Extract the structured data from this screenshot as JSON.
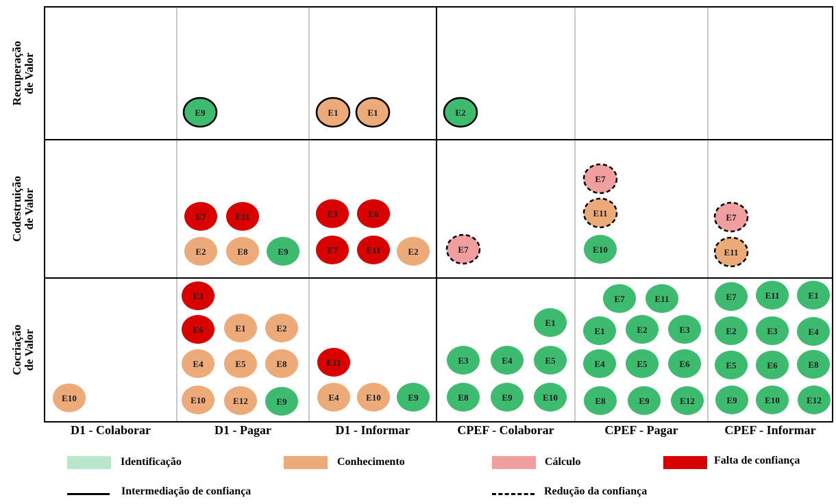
{
  "rows": [
    {
      "id": "recuperacao",
      "line1": "Recuperação",
      "line2": "de Valor"
    },
    {
      "id": "codestruicao",
      "line1": "Codestruição",
      "line2": "de Valor"
    },
    {
      "id": "cocriacao",
      "line1": "Cocriação",
      "line2": "de Valor"
    }
  ],
  "columns": [
    "D1 - Colaborar",
    "D1 - Pagar",
    "D1 - Informar",
    "CPEF - Colaborar",
    "CPEF - Pagar",
    "CPEF - Informar"
  ],
  "colors": {
    "identificacao": "#3dbb6f",
    "conhecimento": "#eeab7a",
    "calculo": "#f19e9e",
    "falta": "#d90000",
    "swatch_identificacao": "#b8e7cb"
  },
  "legend": {
    "identificacao": "Identificação",
    "conhecimento": "Conhecimento",
    "calculo": "Cálculo",
    "falta": "Falta de confiança",
    "intermediacao": "Intermediação de confiança",
    "reducao": "Redução da confiança"
  },
  "nodes": [
    {
      "row": 0,
      "col": 1,
      "label": "E9",
      "cat": "identificacao",
      "border": "solid"
    },
    {
      "row": 0,
      "col": 2,
      "label": "E1",
      "cat": "conhecimento",
      "border": "solid"
    },
    {
      "row": 0,
      "col": 2,
      "label": "E1",
      "cat": "conhecimento",
      "border": "solid"
    },
    {
      "row": 0,
      "col": 3,
      "label": "E2",
      "cat": "identificacao",
      "border": "solid"
    },
    {
      "row": 1,
      "col": 1,
      "label": "E7",
      "cat": "falta",
      "border": "none"
    },
    {
      "row": 1,
      "col": 1,
      "label": "E11",
      "cat": "falta",
      "border": "none"
    },
    {
      "row": 1,
      "col": 1,
      "label": "E2",
      "cat": "conhecimento",
      "border": "none"
    },
    {
      "row": 1,
      "col": 1,
      "label": "E8",
      "cat": "conhecimento",
      "border": "none"
    },
    {
      "row": 1,
      "col": 1,
      "label": "E9",
      "cat": "identificacao",
      "border": "none"
    },
    {
      "row": 1,
      "col": 2,
      "label": "E3",
      "cat": "falta",
      "border": "none"
    },
    {
      "row": 1,
      "col": 2,
      "label": "E6",
      "cat": "falta",
      "border": "none"
    },
    {
      "row": 1,
      "col": 2,
      "label": "E7",
      "cat": "falta",
      "border": "none"
    },
    {
      "row": 1,
      "col": 2,
      "label": "E11",
      "cat": "falta",
      "border": "none"
    },
    {
      "row": 1,
      "col": 2,
      "label": "E2",
      "cat": "conhecimento",
      "border": "none"
    },
    {
      "row": 1,
      "col": 3,
      "label": "E7",
      "cat": "calculo",
      "border": "dashed"
    },
    {
      "row": 1,
      "col": 4,
      "label": "E7",
      "cat": "calculo",
      "border": "dashed"
    },
    {
      "row": 1,
      "col": 4,
      "label": "E11",
      "cat": "conhecimento",
      "border": "dashed"
    },
    {
      "row": 1,
      "col": 4,
      "label": "E10",
      "cat": "identificacao",
      "border": "none"
    },
    {
      "row": 1,
      "col": 5,
      "label": "E7",
      "cat": "calculo",
      "border": "dashed"
    },
    {
      "row": 1,
      "col": 5,
      "label": "E11",
      "cat": "conhecimento",
      "border": "dashed"
    },
    {
      "row": 2,
      "col": 0,
      "label": "E10",
      "cat": "conhecimento",
      "border": "none"
    },
    {
      "row": 2,
      "col": 1,
      "label": "E3",
      "cat": "falta",
      "border": "none"
    },
    {
      "row": 2,
      "col": 1,
      "label": "E6",
      "cat": "falta",
      "border": "none"
    },
    {
      "row": 2,
      "col": 1,
      "label": "E1",
      "cat": "conhecimento",
      "border": "none"
    },
    {
      "row": 2,
      "col": 1,
      "label": "E2",
      "cat": "conhecimento",
      "border": "none"
    },
    {
      "row": 2,
      "col": 1,
      "label": "E4",
      "cat": "conhecimento",
      "border": "none"
    },
    {
      "row": 2,
      "col": 1,
      "label": "E5",
      "cat": "conhecimento",
      "border": "none"
    },
    {
      "row": 2,
      "col": 1,
      "label": "E8",
      "cat": "conhecimento",
      "border": "none"
    },
    {
      "row": 2,
      "col": 1,
      "label": "E10",
      "cat": "conhecimento",
      "border": "none"
    },
    {
      "row": 2,
      "col": 1,
      "label": "E12",
      "cat": "conhecimento",
      "border": "none"
    },
    {
      "row": 2,
      "col": 1,
      "label": "E9",
      "cat": "identificacao",
      "border": "none"
    },
    {
      "row": 2,
      "col": 2,
      "label": "E11",
      "cat": "falta",
      "border": "none"
    },
    {
      "row": 2,
      "col": 2,
      "label": "E4",
      "cat": "conhecimento",
      "border": "none"
    },
    {
      "row": 2,
      "col": 2,
      "label": "E10",
      "cat": "conhecimento",
      "border": "none"
    },
    {
      "row": 2,
      "col": 2,
      "label": "E9",
      "cat": "identificacao",
      "border": "none"
    },
    {
      "row": 2,
      "col": 3,
      "label": "E1",
      "cat": "identificacao",
      "border": "none"
    },
    {
      "row": 2,
      "col": 3,
      "label": "E3",
      "cat": "identificacao",
      "border": "none"
    },
    {
      "row": 2,
      "col": 3,
      "label": "E4",
      "cat": "identificacao",
      "border": "none"
    },
    {
      "row": 2,
      "col": 3,
      "label": "E5",
      "cat": "identificacao",
      "border": "none"
    },
    {
      "row": 2,
      "col": 3,
      "label": "E8",
      "cat": "identificacao",
      "border": "none"
    },
    {
      "row": 2,
      "col": 3,
      "label": "E9",
      "cat": "identificacao",
      "border": "none"
    },
    {
      "row": 2,
      "col": 3,
      "label": "E10",
      "cat": "identificacao",
      "border": "none"
    },
    {
      "row": 2,
      "col": 4,
      "label": "E7",
      "cat": "identificacao",
      "border": "none"
    },
    {
      "row": 2,
      "col": 4,
      "label": "E11",
      "cat": "identificacao",
      "border": "none"
    },
    {
      "row": 2,
      "col": 4,
      "label": "E1",
      "cat": "identificacao",
      "border": "none"
    },
    {
      "row": 2,
      "col": 4,
      "label": "E2",
      "cat": "identificacao",
      "border": "none"
    },
    {
      "row": 2,
      "col": 4,
      "label": "E3",
      "cat": "identificacao",
      "border": "none"
    },
    {
      "row": 2,
      "col": 4,
      "label": "E4",
      "cat": "identificacao",
      "border": "none"
    },
    {
      "row": 2,
      "col": 4,
      "label": "E5",
      "cat": "identificacao",
      "border": "none"
    },
    {
      "row": 2,
      "col": 4,
      "label": "E6",
      "cat": "identificacao",
      "border": "none"
    },
    {
      "row": 2,
      "col": 4,
      "label": "E8",
      "cat": "identificacao",
      "border": "none"
    },
    {
      "row": 2,
      "col": 4,
      "label": "E9",
      "cat": "identificacao",
      "border": "none"
    },
    {
      "row": 2,
      "col": 4,
      "label": "E12",
      "cat": "identificacao",
      "border": "none"
    },
    {
      "row": 2,
      "col": 5,
      "label": "E7",
      "cat": "identificacao",
      "border": "none"
    },
    {
      "row": 2,
      "col": 5,
      "label": "E11",
      "cat": "identificacao",
      "border": "none"
    },
    {
      "row": 2,
      "col": 5,
      "label": "E1",
      "cat": "identificacao",
      "border": "none"
    },
    {
      "row": 2,
      "col": 5,
      "label": "E2",
      "cat": "identificacao",
      "border": "none"
    },
    {
      "row": 2,
      "col": 5,
      "label": "E3",
      "cat": "identificacao",
      "border": "none"
    },
    {
      "row": 2,
      "col": 5,
      "label": "E4",
      "cat": "identificacao",
      "border": "none"
    },
    {
      "row": 2,
      "col": 5,
      "label": "E5",
      "cat": "identificacao",
      "border": "none"
    },
    {
      "row": 2,
      "col": 5,
      "label": "E6",
      "cat": "identificacao",
      "border": "none"
    },
    {
      "row": 2,
      "col": 5,
      "label": "E8",
      "cat": "identificacao",
      "border": "none"
    },
    {
      "row": 2,
      "col": 5,
      "label": "E9",
      "cat": "identificacao",
      "border": "none"
    },
    {
      "row": 2,
      "col": 5,
      "label": "E10",
      "cat": "identificacao",
      "border": "none"
    },
    {
      "row": 2,
      "col": 5,
      "label": "E12",
      "cat": "identificacao",
      "border": "none"
    }
  ]
}
